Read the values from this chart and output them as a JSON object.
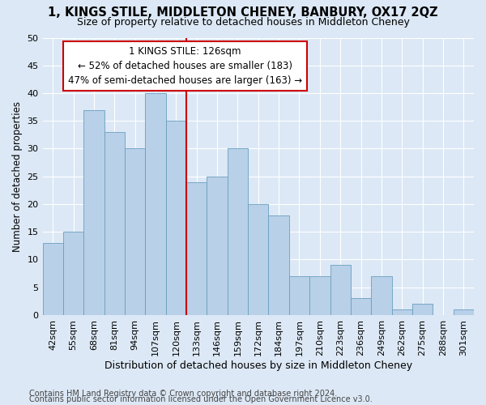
{
  "title": "1, KINGS STILE, MIDDLETON CHENEY, BANBURY, OX17 2QZ",
  "subtitle": "Size of property relative to detached houses in Middleton Cheney",
  "xlabel": "Distribution of detached houses by size in Middleton Cheney",
  "ylabel": "Number of detached properties",
  "categories": [
    "42sqm",
    "55sqm",
    "68sqm",
    "81sqm",
    "94sqm",
    "107sqm",
    "120sqm",
    "133sqm",
    "146sqm",
    "159sqm",
    "172sqm",
    "184sqm",
    "197sqm",
    "210sqm",
    "223sqm",
    "236sqm",
    "249sqm",
    "262sqm",
    "275sqm",
    "288sqm",
    "301sqm"
  ],
  "values": [
    13,
    15,
    37,
    33,
    30,
    40,
    35,
    24,
    25,
    30,
    20,
    18,
    7,
    7,
    9,
    3,
    7,
    1,
    2,
    0,
    1
  ],
  "bar_color": "#b8d0e8",
  "bar_edge_color": "#6a9fc0",
  "marker_label": "1 KINGS STILE: 126sqm",
  "annotation_line1": "← 52% of detached houses are smaller (183)",
  "annotation_line2": "47% of semi-detached houses are larger (163) →",
  "annotation_box_color": "#ffffff",
  "annotation_box_edge": "#cc0000",
  "vline_color": "#cc0000",
  "vline_x": 6.5,
  "ylim": [
    0,
    50
  ],
  "yticks": [
    0,
    5,
    10,
    15,
    20,
    25,
    30,
    35,
    40,
    45,
    50
  ],
  "footer1": "Contains HM Land Registry data © Crown copyright and database right 2024.",
  "footer2": "Contains public sector information licensed under the Open Government Licence v3.0.",
  "bg_color": "#dce8f5",
  "plot_bg_color": "#dce8f5",
  "grid_color": "#ffffff",
  "title_fontsize": 10.5,
  "subtitle_fontsize": 9,
  "xlabel_fontsize": 9,
  "ylabel_fontsize": 8.5,
  "tick_fontsize": 8,
  "footer_fontsize": 7,
  "annotation_fontsize": 8.5
}
